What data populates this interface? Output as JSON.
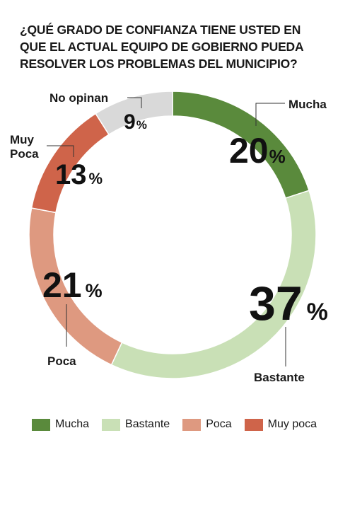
{
  "title_lines": [
    "¿QUÉ GRADO DE CONFIANZA TIENE USTED EN",
    "QUE EL ACTUAL EQUIPO DE GOBIERNO PUEDA",
    "RESOLVER LOS PROBLEMAS DEL MUNICIPIO?"
  ],
  "chart_data": {
    "type": "pie",
    "donut": true,
    "title": "¿QUÉ GRADO DE CONFIANZA TIENE USTED EN QUE EL ACTUAL EQUIPO DE GOBIERNO PUEDA RESOLVER LOS PROBLEMAS DEL MUNICIPIO?",
    "unit": "%",
    "slices": [
      {
        "key": "mucha",
        "label": "Mucha",
        "value": 20,
        "color": "#5a8a3c"
      },
      {
        "key": "bastante",
        "label": "Bastante",
        "value": 37,
        "color": "#c9e0b6"
      },
      {
        "key": "poca",
        "label": "Poca",
        "value": 21,
        "color": "#de9980"
      },
      {
        "key": "muy_poca",
        "label_lines": [
          "Muy",
          "Poca"
        ],
        "value": 13,
        "color": "#cf644a"
      },
      {
        "key": "no_opinan",
        "label": "No opinan",
        "value": 9,
        "color": "#d9d9d9"
      }
    ],
    "legend": {
      "placement": "bottom",
      "items": [
        {
          "label": "Mucha",
          "color": "#5a8a3c"
        },
        {
          "label": "Bastante",
          "color": "#c9e0b6"
        },
        {
          "label": "Poca",
          "color": "#de9980"
        },
        {
          "label": "Muy poca",
          "color": "#cf644a"
        }
      ]
    }
  }
}
